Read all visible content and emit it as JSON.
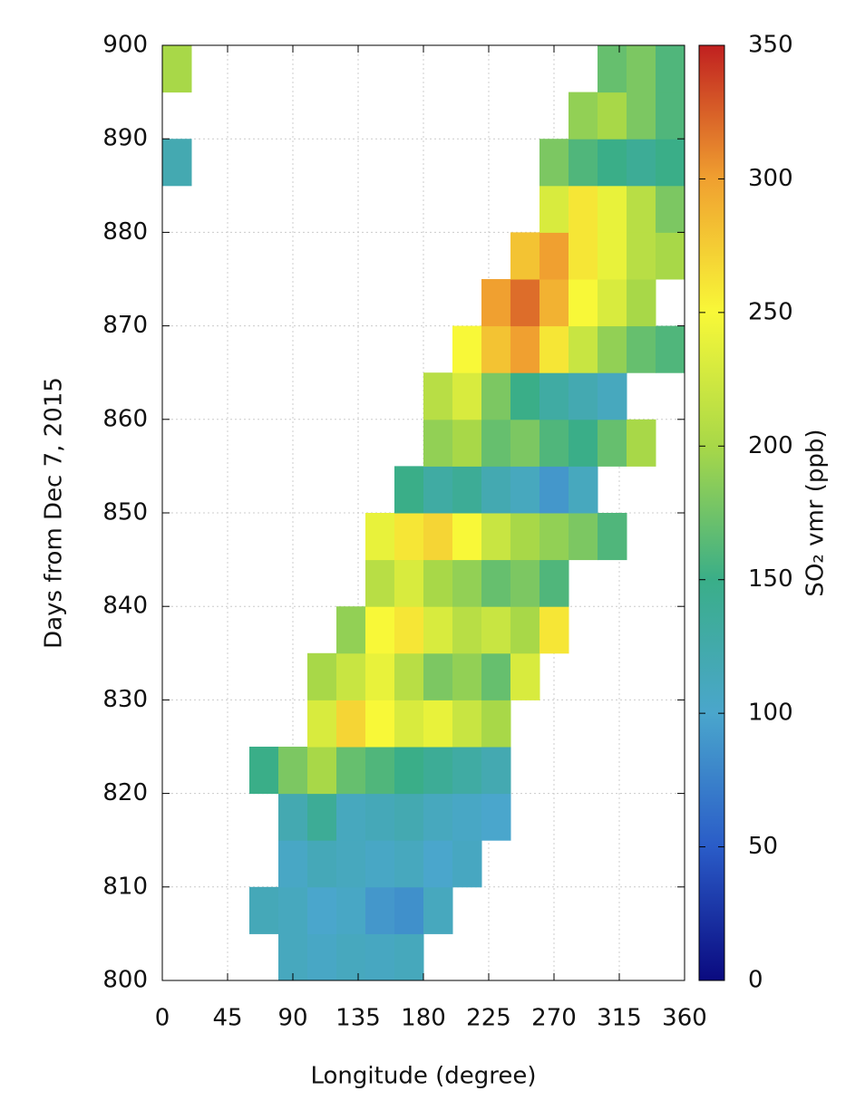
{
  "chart_data": {
    "type": "heatmap",
    "x_label": "Longitude (degree)",
    "y_label": "Days from Dec 7, 2015",
    "colorbar_label": "SO₂ vmr (ppb)",
    "x": [
      0,
      20,
      40,
      60,
      80,
      100,
      120,
      140,
      160,
      180,
      200,
      220,
      240,
      260,
      280,
      300,
      320,
      340,
      360
    ],
    "y": [
      800,
      805,
      810,
      815,
      820,
      825,
      830,
      835,
      840,
      845,
      850,
      855,
      860,
      865,
      870,
      875,
      880,
      885,
      890,
      895,
      900
    ],
    "z": [
      [
        null,
        null,
        null,
        null,
        110,
        105,
        110,
        108,
        112,
        null,
        null,
        null,
        null,
        null,
        null,
        null,
        null,
        null
      ],
      [
        null,
        null,
        null,
        115,
        110,
        100,
        105,
        90,
        85,
        110,
        null,
        null,
        null,
        null,
        null,
        null,
        null,
        null
      ],
      [
        null,
        null,
        null,
        null,
        105,
        115,
        110,
        105,
        110,
        100,
        108,
        null,
        null,
        null,
        null,
        null,
        null,
        null
      ],
      [
        null,
        null,
        null,
        null,
        120,
        140,
        110,
        115,
        120,
        110,
        105,
        100,
        null,
        null,
        null,
        null,
        null,
        null
      ],
      [
        null,
        null,
        null,
        150,
        180,
        200,
        170,
        160,
        150,
        140,
        130,
        120,
        null,
        null,
        null,
        null,
        null,
        null
      ],
      [
        null,
        null,
        null,
        null,
        null,
        230,
        270,
        250,
        230,
        240,
        220,
        200,
        null,
        null,
        null,
        null,
        null,
        null
      ],
      [
        null,
        null,
        null,
        null,
        null,
        200,
        220,
        240,
        210,
        180,
        190,
        170,
        230,
        null,
        null,
        null,
        null,
        null
      ],
      [
        null,
        null,
        null,
        null,
        null,
        null,
        190,
        250,
        260,
        230,
        210,
        220,
        200,
        260,
        null,
        null,
        null,
        null
      ],
      [
        null,
        null,
        null,
        null,
        null,
        null,
        null,
        210,
        230,
        200,
        190,
        170,
        180,
        160,
        null,
        null,
        null,
        null
      ],
      [
        null,
        null,
        null,
        null,
        null,
        null,
        null,
        240,
        260,
        270,
        250,
        220,
        200,
        190,
        180,
        160,
        null,
        null
      ],
      [
        null,
        null,
        null,
        null,
        null,
        null,
        null,
        null,
        150,
        130,
        140,
        120,
        110,
        90,
        110,
        null,
        null,
        null
      ],
      [
        null,
        null,
        null,
        null,
        null,
        null,
        null,
        null,
        null,
        190,
        200,
        170,
        180,
        160,
        150,
        170,
        200,
        null
      ],
      [
        null,
        null,
        null,
        null,
        null,
        null,
        null,
        null,
        null,
        210,
        230,
        180,
        150,
        130,
        120,
        110,
        null,
        null
      ],
      [
        null,
        null,
        null,
        null,
        null,
        null,
        null,
        null,
        null,
        null,
        250,
        280,
        300,
        260,
        220,
        190,
        170,
        160
      ],
      [
        null,
        null,
        null,
        null,
        null,
        null,
        null,
        null,
        null,
        null,
        null,
        300,
        320,
        290,
        250,
        230,
        200,
        null
      ],
      [
        null,
        null,
        null,
        null,
        null,
        null,
        null,
        null,
        null,
        null,
        null,
        null,
        280,
        300,
        260,
        240,
        210,
        200
      ],
      [
        null,
        null,
        null,
        null,
        null,
        null,
        null,
        null,
        null,
        null,
        null,
        null,
        null,
        230,
        260,
        240,
        210,
        180
      ],
      [
        120,
        null,
        null,
        null,
        null,
        null,
        null,
        null,
        null,
        null,
        null,
        null,
        null,
        180,
        160,
        150,
        140,
        150
      ],
      [
        null,
        null,
        null,
        null,
        null,
        null,
        null,
        null,
        null,
        null,
        null,
        null,
        null,
        null,
        190,
        200,
        180,
        160
      ],
      [
        200,
        null,
        null,
        null,
        null,
        null,
        null,
        null,
        null,
        null,
        null,
        null,
        null,
        null,
        null,
        170,
        180,
        160
      ]
    ],
    "xlim": [
      0,
      360
    ],
    "ylim": [
      800,
      900
    ],
    "zlim": [
      0,
      350
    ],
    "xticks": [
      0,
      45,
      90,
      135,
      180,
      225,
      270,
      315,
      360
    ],
    "yticks": [
      800,
      810,
      820,
      830,
      840,
      850,
      860,
      870,
      880,
      890,
      900
    ],
    "zticks": [
      0,
      50,
      100,
      150,
      200,
      250,
      300,
      350
    ],
    "colormap": [
      "#0a0a80",
      "#2a5cc8",
      "#4aa6cc",
      "#3aae88",
      "#a8d848",
      "#f8f838",
      "#f0a030",
      "#c02020"
    ],
    "grid": true
  }
}
